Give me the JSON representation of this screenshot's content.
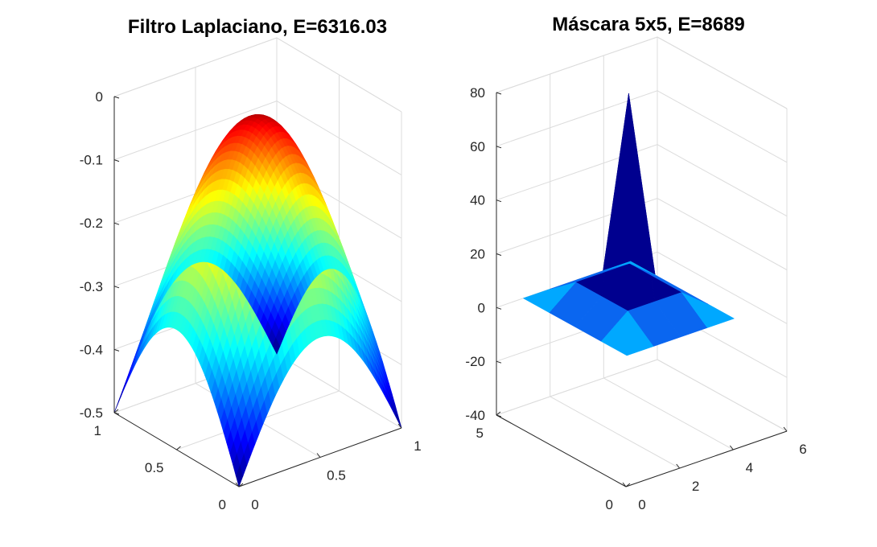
{
  "chart_data": [
    {
      "type": "surface",
      "title": "Filtro Laplaciano, E=6316.03",
      "x_ticks": [
        "0",
        "0.5",
        "1"
      ],
      "y_ticks": [
        "0",
        "0.5",
        "1"
      ],
      "z_ticks": [
        "-0.5",
        "-0.4",
        "-0.3",
        "-0.2",
        "-0.1",
        "0"
      ],
      "xlim": [
        0,
        1
      ],
      "ylim": [
        0,
        1
      ],
      "zlim": [
        -0.5,
        0
      ],
      "surface": {
        "corner_value": -0.5,
        "edge_midpoint_value": -0.31,
        "center_value": -0.02
      },
      "colormap": "jet",
      "grid": true,
      "legend": "none"
    },
    {
      "type": "surface",
      "title": "Máscara 5x5, E=8689",
      "x_ticks": [
        "0",
        "2",
        "4",
        "6"
      ],
      "y_ticks": [
        "0",
        "5"
      ],
      "z_ticks": [
        "-40",
        "-20",
        "0",
        "20",
        "40",
        "60",
        "80"
      ],
      "xlim": [
        0,
        6
      ],
      "ylim": [
        0,
        5
      ],
      "zlim": [
        -40,
        80
      ],
      "surface": {
        "grid_values": [
          [
            0,
            0,
            0,
            0,
            0
          ],
          [
            0,
            8,
            8,
            8,
            0
          ],
          [
            0,
            8,
            80,
            8,
            0
          ],
          [
            0,
            8,
            8,
            8,
            0
          ],
          [
            0,
            0,
            0,
            0,
            0
          ]
        ]
      },
      "colors": {
        "dark_face": "#00008f",
        "mid_face": "#0a66f0",
        "light_face": "#00a8ff"
      },
      "grid": true,
      "legend": "none"
    }
  ]
}
